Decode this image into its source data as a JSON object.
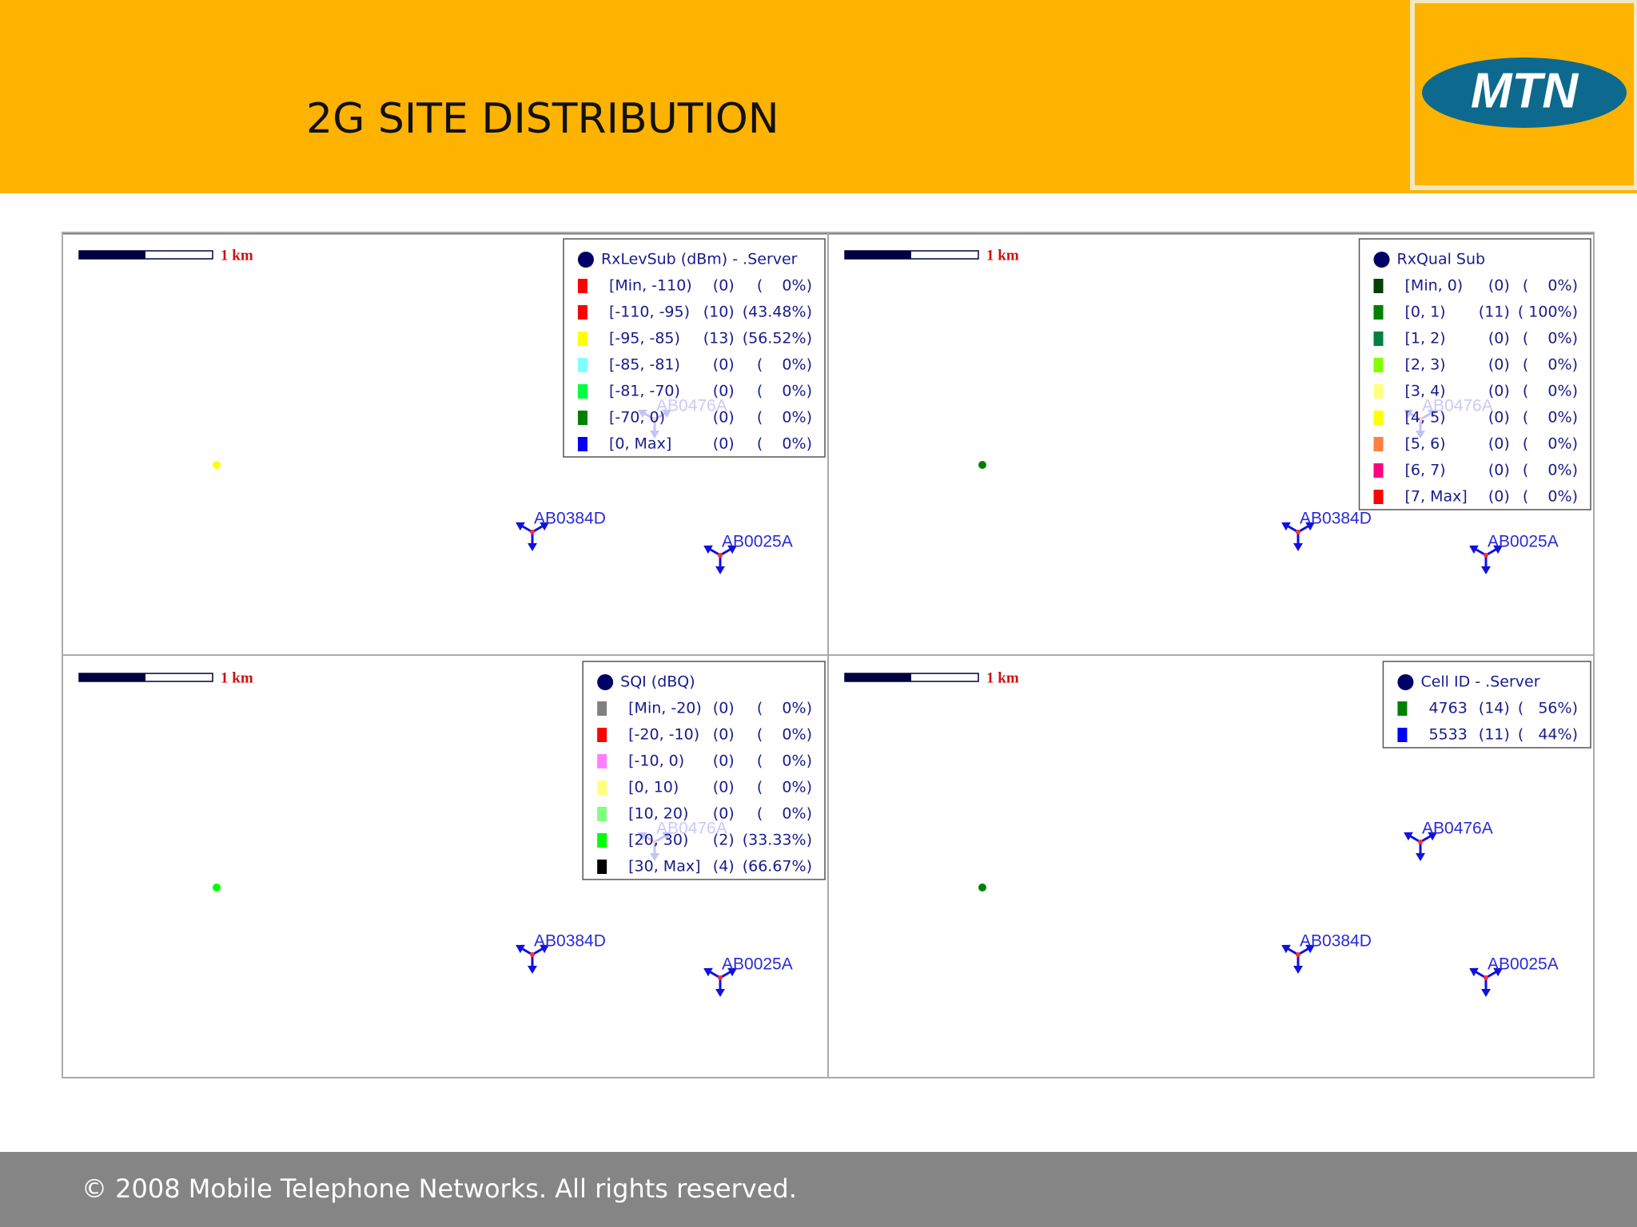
{
  "header": {
    "title": "2G SITE DISTRIBUTION",
    "logo": "MTN"
  },
  "scale_label": "1 km",
  "sites": [
    "AB0384D",
    "AB0025A",
    "AB0476A"
  ],
  "panels": [
    {
      "point_color": "#ffff00",
      "legend": {
        "title": "RxLevSub (dBm) - .Server",
        "rows": [
          {
            "color": "#ff0000",
            "range": "[Min, -110)",
            "count": "(0)",
            "share": "(    0%)"
          },
          {
            "color": "#ff0000",
            "range": "[-110, -95)",
            "count": "(10)",
            "share": "(43.48%)"
          },
          {
            "color": "#ffff00",
            "range": "[-95, -85)",
            "count": "(13)",
            "share": "(56.52%)"
          },
          {
            "color": "#80ffff",
            "range": "[-85, -81)",
            "count": "(0)",
            "share": "(    0%)"
          },
          {
            "color": "#00ff40",
            "range": "[-81, -70)",
            "count": "(0)",
            "share": "(    0%)"
          },
          {
            "color": "#008000",
            "range": "[-70, 0)",
            "count": "(0)",
            "share": "(    0%)"
          },
          {
            "color": "#0000ff",
            "range": "[0, Max]",
            "count": "(0)",
            "share": "(    0%)"
          }
        ]
      }
    },
    {
      "point_color": "#008000",
      "legend": {
        "title": "RxQual Sub",
        "rows": [
          {
            "color": "#004000",
            "range": "[Min, 0)",
            "count": "(0)",
            "share": "(    0%)"
          },
          {
            "color": "#008000",
            "range": "[0, 1)",
            "count": "(11)",
            "share": "( 100%)"
          },
          {
            "color": "#008040",
            "range": "[1, 2)",
            "count": "(0)",
            "share": "(    0%)"
          },
          {
            "color": "#80ff00",
            "range": "[2, 3)",
            "count": "(0)",
            "share": "(    0%)"
          },
          {
            "color": "#ffff80",
            "range": "[3, 4)",
            "count": "(0)",
            "share": "(    0%)"
          },
          {
            "color": "#ffff00",
            "range": "[4, 5)",
            "count": "(0)",
            "share": "(    0%)"
          },
          {
            "color": "#ff8040",
            "range": "[5, 6)",
            "count": "(0)",
            "share": "(    0%)"
          },
          {
            "color": "#ff0080",
            "range": "[6, 7)",
            "count": "(0)",
            "share": "(    0%)"
          },
          {
            "color": "#ff0000",
            "range": "[7, Max]",
            "count": "(0)",
            "share": "(    0%)"
          }
        ]
      }
    },
    {
      "point_color": "#00ff00",
      "legend": {
        "title": "SQI (dBQ)",
        "rows": [
          {
            "color": "#808080",
            "range": "[Min, -20)",
            "count": "(0)",
            "share": "(    0%)"
          },
          {
            "color": "#ff0000",
            "range": "[-20, -10)",
            "count": "(0)",
            "share": "(    0%)"
          },
          {
            "color": "#ff80ff",
            "range": "[-10, 0)",
            "count": "(0)",
            "share": "(    0%)"
          },
          {
            "color": "#ffff80",
            "range": "[0, 10)",
            "count": "(0)",
            "share": "(    0%)"
          },
          {
            "color": "#80ff80",
            "range": "[10, 20)",
            "count": "(0)",
            "share": "(    0%)"
          },
          {
            "color": "#00ff00",
            "range": "[20, 30)",
            "count": "(2)",
            "share": "(33.33%)"
          },
          {
            "color": "#000000",
            "range": "[30, Max]",
            "count": "(4)",
            "share": "(66.67%)"
          }
        ]
      }
    },
    {
      "point_color": "#008000",
      "legend": {
        "title": "Cell ID - .Server",
        "rows": [
          {
            "color": "#008000",
            "range": "4763",
            "count": "(14)",
            "share": "(   56%)"
          },
          {
            "color": "#0000ff",
            "range": "5533",
            "count": "(11)",
            "share": "(   44%)"
          }
        ]
      }
    }
  ],
  "footer": "© 2008 Mobile Telephone Networks. All rights reserved."
}
